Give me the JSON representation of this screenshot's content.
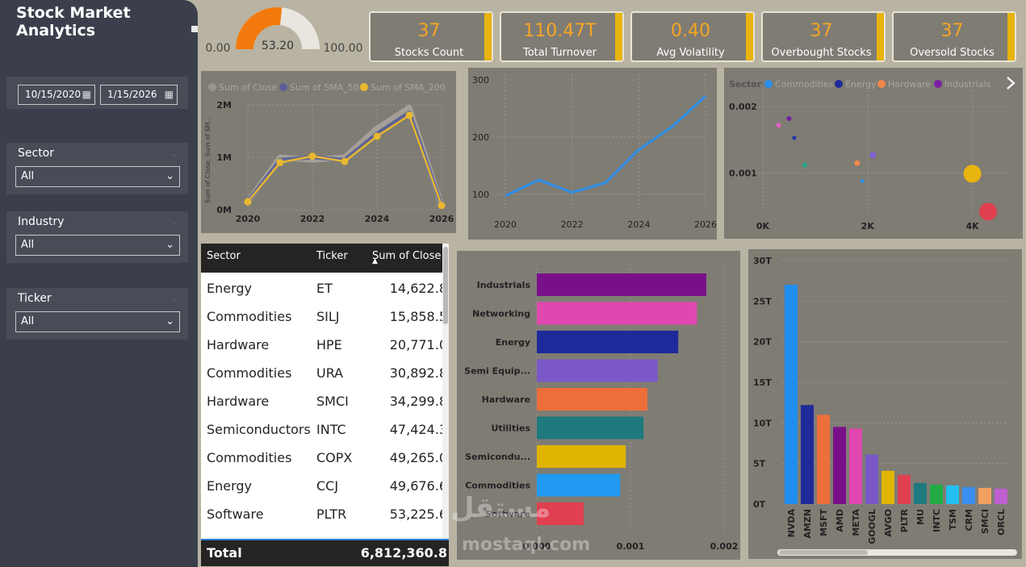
{
  "app": {
    "title": "Stock Market Analytics"
  },
  "filters": {
    "date_from": "10/15/2020",
    "date_to": "1/15/2026",
    "sector": {
      "label": "Sector",
      "value": "All"
    },
    "industry": {
      "label": "Industry",
      "value": "All"
    },
    "ticker": {
      "label": "Ticker",
      "value": "All"
    }
  },
  "gauge": {
    "value": "53.20",
    "min": "0.00",
    "max": "100.00",
    "fraction": 0.532
  },
  "kpis": [
    {
      "value": "37",
      "label": "Stocks Count"
    },
    {
      "value": "110.47T",
      "label": "Total Turnover"
    },
    {
      "value": "0.40",
      "label": "Avg Volatility"
    },
    {
      "value": "37",
      "label": "Overbought Stocks"
    },
    {
      "value": "37",
      "label": "Oversold Stocks"
    }
  ],
  "colors": {
    "accent": "#e8b40f",
    "kpi_value": "#f5a623",
    "gauge_fill": "#f27a0c",
    "line_blue": "#2b8ee8",
    "sma50": "#5b5f97",
    "sma200": "#e8b830"
  },
  "table": {
    "columns": [
      "Sector",
      "Ticker",
      "Sum of Close"
    ],
    "rows": [
      [
        "Energy",
        "ET",
        "14,622.8"
      ],
      [
        "Commodities",
        "SILJ",
        "15,858.5"
      ],
      [
        "Hardware",
        "HPE",
        "20,771.0"
      ],
      [
        "Commodities",
        "URA",
        "30,892.8"
      ],
      [
        "Hardware",
        "SMCI",
        "34,299.8"
      ],
      [
        "Semiconductors",
        "INTC",
        "47,424.3"
      ],
      [
        "Commodities",
        "COPX",
        "49,265.0"
      ],
      [
        "Energy",
        "CCJ",
        "49,676.6"
      ],
      [
        "Software",
        "PLTR",
        "53,225.6"
      ]
    ],
    "total_label": "Total",
    "total_value": "6,812,360.8"
  },
  "watermark": {
    "arabic": "مستقل",
    "latin": "mostaql.com"
  },
  "chart_data": [
    {
      "type": "line",
      "legend": [
        "Sum of Close",
        "Sum of SMA_50",
        "Sum of SMA_200"
      ],
      "ylabel": "Sum of Close, Sum of SM...",
      "x": [
        2020,
        2021,
        2022,
        2023,
        2024,
        2025,
        2026
      ],
      "x_ticks": [
        "2020",
        "2022",
        "2024",
        "2026"
      ],
      "y_ticks": [
        "0M",
        "1M",
        "2M"
      ],
      "ylim": [
        0,
        2000000
      ],
      "series": [
        {
          "name": "Sum of Close",
          "values": [
            150000,
            1000000,
            950000,
            1000000,
            1550000,
            1950000,
            80000
          ]
        },
        {
          "name": "Sum of SMA_50",
          "values": [
            150000,
            950000,
            1000000,
            950000,
            1450000,
            1850000,
            80000
          ]
        },
        {
          "name": "Sum of SMA_200",
          "values": [
            150000,
            900000,
            1020000,
            920000,
            1400000,
            1800000,
            80000
          ]
        }
      ],
      "legend_position": "top-left"
    },
    {
      "type": "line",
      "x": [
        2020,
        2021,
        2022,
        2023,
        2024,
        2025,
        2026
      ],
      "x_ticks": [
        "2020",
        "2022",
        "2024",
        "2026"
      ],
      "y_ticks": [
        "100",
        "200",
        "300"
      ],
      "ylim": [
        70,
        310
      ],
      "series": [
        {
          "values": [
            97,
            125,
            103,
            120,
            178,
            218,
            272
          ]
        }
      ]
    },
    {
      "type": "scatter",
      "legend_title": "Sector",
      "legend": [
        "Commodities",
        "Energy",
        "Hardware",
        "Industrials"
      ],
      "x_ticks": [
        "0K",
        "2K",
        "4K"
      ],
      "y_ticks": [
        "0.001",
        "0.002"
      ],
      "xlim": [
        0,
        4500
      ],
      "ylim": [
        0.0004,
        0.0021
      ],
      "points": [
        {
          "x": 300,
          "y": 0.00172,
          "color": "#e060c0",
          "size": 3
        },
        {
          "x": 500,
          "y": 0.00182,
          "color": "#7a1fa2",
          "size": 3
        },
        {
          "x": 600,
          "y": 0.00153,
          "color": "#1f3aa8",
          "size": 2.5
        },
        {
          "x": 800,
          "y": 0.00112,
          "color": "#22aa88",
          "size": 3
        },
        {
          "x": 1800,
          "y": 0.00115,
          "color": "#f0874a",
          "size": 3.5
        },
        {
          "x": 1900,
          "y": 0.00088,
          "color": "#2b8ee8",
          "size": 2.5
        },
        {
          "x": 2100,
          "y": 0.00127,
          "color": "#8060d0",
          "size": 4
        },
        {
          "x": 4000,
          "y": 0.00099,
          "color": "#e8b40f",
          "size": 11
        },
        {
          "x": 4300,
          "y": 0.00042,
          "color": "#e04050",
          "size": 11
        }
      ],
      "legend_position": "top-left"
    },
    {
      "type": "bar",
      "orientation": "horizontal",
      "categories": [
        "Industrials",
        "Networking",
        "Energy",
        "Semi Equip...",
        "Hardware",
        "Utilities",
        "Semicondu...",
        "Commodities",
        "Software"
      ],
      "values": [
        0.00181,
        0.00171,
        0.00151,
        0.00129,
        0.00118,
        0.00114,
        0.00095,
        0.00089,
        0.0005
      ],
      "colors": [
        "#7a0f8a",
        "#e048b0",
        "#1f2a9a",
        "#7a58c8",
        "#ee6e3a",
        "#1f7a80",
        "#e0b400",
        "#1f9af0",
        "#e04050"
      ],
      "x_ticks": [
        "0.000",
        "0.001",
        "0.002"
      ],
      "xlim": [
        0,
        0.002
      ]
    },
    {
      "type": "bar",
      "categories": [
        "NVDA",
        "AMZN",
        "MSFT",
        "AMD",
        "META",
        "GOOGL",
        "AVGO",
        "PLTR",
        "MU",
        "INTC",
        "TSM",
        "CRM",
        "SMCI",
        "ORCL"
      ],
      "values": [
        27,
        12.2,
        11,
        9.5,
        9.3,
        6.1,
        4.1,
        3.6,
        2.6,
        2.4,
        2.3,
        2.1,
        2.0,
        1.9
      ],
      "colors": [
        "#1f8ef0",
        "#1f2a9a",
        "#ee6e3a",
        "#7a0f8a",
        "#e048b0",
        "#7a58c8",
        "#e0b400",
        "#e04050",
        "#1f7a80",
        "#22aa44",
        "#22c0f0",
        "#3a8ef0",
        "#f0a060",
        "#c060d0"
      ],
      "y_ticks": [
        "0T",
        "5T",
        "10T",
        "15T",
        "20T",
        "25T",
        "30T"
      ],
      "ylim": [
        0,
        30
      ]
    }
  ]
}
